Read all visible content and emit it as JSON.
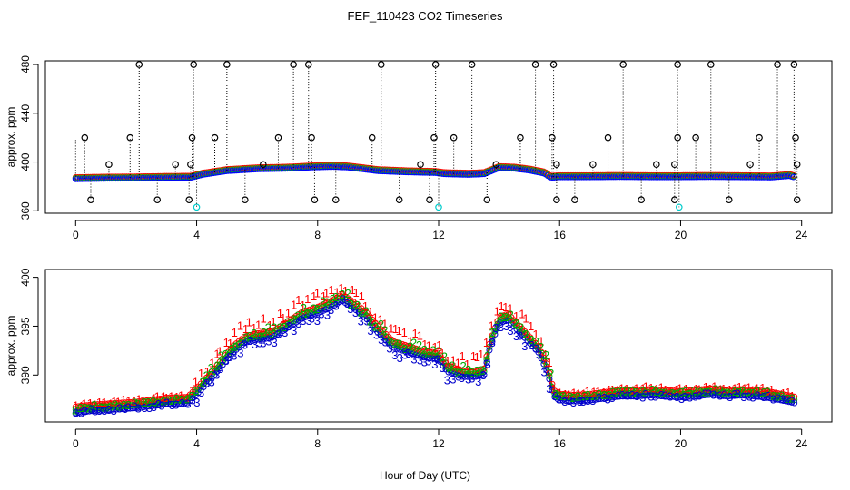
{
  "figure": {
    "title": "FEF_110423  CO2 Timeseries",
    "xlabel": "Hour of Day (UTC)"
  },
  "chart_data": [
    {
      "type": "scatter",
      "panel": "top",
      "ylabel": "approx. ppm",
      "xlim": [
        -1,
        25
      ],
      "ylim": [
        358,
        483
      ],
      "xticks": [
        0,
        4,
        8,
        12,
        16,
        20,
        24
      ],
      "yticks": [
        360,
        400,
        440,
        480
      ],
      "colors": {
        "1": "#ff0000",
        "2": "#00cc00",
        "3": "#0000ff",
        "outlier": "#000000",
        "low": "#00cccc"
      },
      "baseline": {
        "x": [
          0,
          1,
          2,
          3,
          3.8,
          4.2,
          5,
          6,
          7,
          7.8,
          8.5,
          9,
          10,
          11,
          11.9,
          12.2,
          13,
          13.5,
          14,
          14.5,
          15,
          15.5,
          15.7,
          16,
          17,
          18,
          19,
          20,
          21,
          22,
          23,
          23.6,
          23.8
        ],
        "y": [
          386.4,
          386.8,
          387.0,
          387.4,
          387.5,
          390,
          393,
          394.5,
          395,
          396,
          396.5,
          396,
          393,
          392,
          391.5,
          390.5,
          390,
          390.5,
          395.5,
          395,
          393.5,
          391,
          387.5,
          388,
          388,
          388.2,
          388,
          388,
          388.2,
          388,
          387.8,
          389,
          387.5
        ]
      },
      "outliers_high": [
        2.1,
        3.9,
        5.0,
        7.2,
        7.7,
        10.1,
        11.9,
        13.1,
        15.2,
        15.8,
        18.1,
        19.9,
        21.0,
        23.2,
        23.75
      ],
      "outliers_mid": [
        [
          0.3,
          420
        ],
        [
          1.8,
          420
        ],
        [
          3.85,
          420
        ],
        [
          4.6,
          420
        ],
        [
          6.7,
          420
        ],
        [
          7.8,
          420
        ],
        [
          9.8,
          420
        ],
        [
          11.85,
          420
        ],
        [
          12.5,
          420
        ],
        [
          14.7,
          420
        ],
        [
          15.75,
          420
        ],
        [
          17.6,
          420
        ],
        [
          19.9,
          420
        ],
        [
          20.5,
          420
        ],
        [
          22.6,
          420
        ],
        [
          23.8,
          420
        ],
        [
          1.1,
          398
        ],
        [
          3.3,
          398
        ],
        [
          3.8,
          398
        ],
        [
          6.2,
          398
        ],
        [
          11.4,
          398
        ],
        [
          13.9,
          398
        ],
        [
          15.9,
          398
        ],
        [
          17.1,
          398
        ],
        [
          19.2,
          398
        ],
        [
          19.8,
          398
        ],
        [
          22.3,
          398
        ],
        [
          23.85,
          398
        ]
      ],
      "outliers_low": [
        0.5,
        2.7,
        3.75,
        5.6,
        7.9,
        8.6,
        10.7,
        11.7,
        13.6,
        15.9,
        16.5,
        18.7,
        19.8,
        21.6,
        23.85
      ],
      "cyan_low": [
        4.0,
        12.0,
        19.95
      ]
    },
    {
      "type": "scatter",
      "panel": "bottom",
      "ylabel": "approx. ppm",
      "xlim": [
        -1,
        25
      ],
      "ylim": [
        385.2,
        400.8
      ],
      "xticks": [
        0,
        4,
        8,
        12,
        16,
        20,
        24
      ],
      "yticks": [
        390,
        395,
        400
      ],
      "series": [
        {
          "name": "1",
          "color": "#ff0000",
          "offset": 0.9
        },
        {
          "name": "2",
          "color": "#00aa00",
          "offset": 0.3
        },
        {
          "name": "3",
          "color": "#0000cc",
          "offset": -0.35
        }
      ],
      "profile": {
        "x": [
          0,
          0.5,
          1,
          2,
          3,
          3.7,
          4.0,
          4.4,
          4.8,
          5.2,
          5.6,
          6.0,
          6.5,
          7.0,
          7.5,
          8.0,
          8.5,
          8.8,
          9.2,
          9.6,
          10.0,
          10.5,
          11.0,
          11.5,
          12.0,
          12.3,
          12.8,
          13.2,
          13.5,
          13.7,
          14.0,
          14.3,
          14.6,
          15.0,
          15.3,
          15.6,
          15.8,
          16.0,
          16.5,
          17,
          17.5,
          18,
          18.5,
          19,
          19.5,
          20,
          20.5,
          21,
          21.5,
          22,
          22.5,
          23,
          23.5,
          23.8
        ],
        "y": [
          386.3,
          386.5,
          386.6,
          386.8,
          387.2,
          387.3,
          388.2,
          389.5,
          391.0,
          392.5,
          393.5,
          393.8,
          394.0,
          395.0,
          396.0,
          396.5,
          397.2,
          397.8,
          397.0,
          396.0,
          394.5,
          393.0,
          392.5,
          392.0,
          391.8,
          390.5,
          390.0,
          390.0,
          390.2,
          393.0,
          395.5,
          395.8,
          394.8,
          393.5,
          392.5,
          390.5,
          388.0,
          387.6,
          387.5,
          387.6,
          387.8,
          388.0,
          388.0,
          388.1,
          388.0,
          387.9,
          388.0,
          388.2,
          388.0,
          388.1,
          388.0,
          387.8,
          387.5,
          387.3
        ]
      }
    }
  ]
}
